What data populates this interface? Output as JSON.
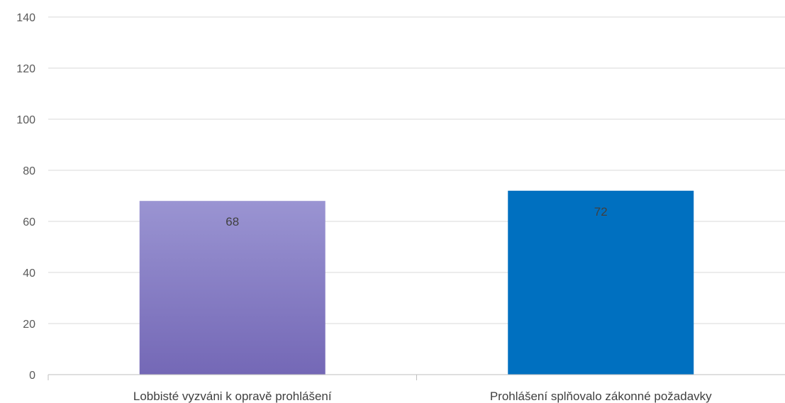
{
  "chart_data": {
    "type": "bar",
    "categories": [
      "Lobbisté vyzváni k opravě prohlášení",
      "Prohlášení splňovalo zákonné požadavky"
    ],
    "values": [
      68,
      72
    ],
    "data_labels": [
      "68",
      "72"
    ],
    "bar_colors": [
      "#8b84cc",
      "#0070c0"
    ],
    "bar_gradient": [
      [
        "#9a94d2",
        "#7468b6"
      ],
      null
    ],
    "ylim": [
      0,
      140
    ],
    "yticks": [
      0,
      20,
      40,
      60,
      80,
      100,
      120,
      140
    ],
    "ytick_labels": [
      "0",
      "20",
      "40",
      "60",
      "80",
      "100",
      "120",
      "140"
    ],
    "grid": true,
    "legend": "none"
  }
}
